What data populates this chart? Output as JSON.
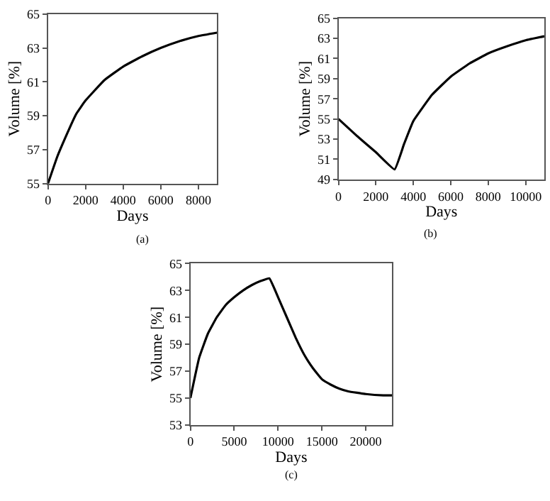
{
  "chart_data": [
    {
      "type": "line",
      "xlabel": "Days",
      "ylabel": "Volume [%]",
      "annotations": [
        "(a)"
      ],
      "color": "#000000",
      "x": [
        0,
        500,
        1000,
        1500,
        2000,
        3000,
        4000,
        5000,
        6000,
        7000,
        8000,
        9000
      ],
      "values": [
        55,
        56.6,
        57.9,
        59.1,
        59.9,
        61.1,
        61.9,
        62.5,
        63.0,
        63.4,
        63.7,
        63.9
      ],
      "xlim": [
        0,
        9000
      ],
      "xticks": [
        0,
        2000,
        4000,
        6000,
        8000
      ],
      "ylim": [
        55,
        65
      ],
      "yticks": [
        55,
        57,
        59,
        61,
        63,
        65
      ]
    },
    {
      "type": "line",
      "xlabel": "Days",
      "ylabel": "Volume [%]",
      "annotations": [
        "(b)"
      ],
      "color": "#000000",
      "x": [
        0,
        1000,
        2000,
        3000,
        3500,
        4000,
        5000,
        6000,
        7000,
        8000,
        9000,
        10000,
        11000
      ],
      "values": [
        55,
        53.3,
        51.7,
        50.0,
        52.5,
        54.8,
        57.4,
        59.2,
        60.5,
        61.5,
        62.2,
        62.8,
        63.2
      ],
      "xlim": [
        0,
        11000
      ],
      "xticks": [
        0,
        2000,
        4000,
        6000,
        8000,
        10000
      ],
      "ylim": [
        49,
        65
      ],
      "yticks": [
        49,
        51,
        53,
        55,
        57,
        59,
        61,
        63,
        65
      ]
    },
    {
      "type": "line",
      "xlabel": "Days",
      "ylabel": "Volume [%]",
      "annotations": [
        "(c)"
      ],
      "color": "#000000",
      "x": [
        0,
        1000,
        2000,
        3000,
        4000,
        5000,
        6000,
        7000,
        8000,
        9000,
        10000,
        11000,
        12000,
        13000,
        14000,
        15000,
        16000,
        17000,
        18000,
        20000,
        22000,
        23000
      ],
      "values": [
        55,
        58,
        59.8,
        61.0,
        61.9,
        62.5,
        63.0,
        63.4,
        63.7,
        63.9,
        62.5,
        61.0,
        59.5,
        58.2,
        57.2,
        56.4,
        56.0,
        55.7,
        55.5,
        55.3,
        55.2,
        55.2
      ],
      "xlim": [
        0,
        23000
      ],
      "xticks": [
        0,
        5000,
        10000,
        15000,
        20000
      ],
      "ylim": [
        53,
        65
      ],
      "yticks": [
        53,
        55,
        57,
        59,
        61,
        63,
        65
      ]
    }
  ]
}
